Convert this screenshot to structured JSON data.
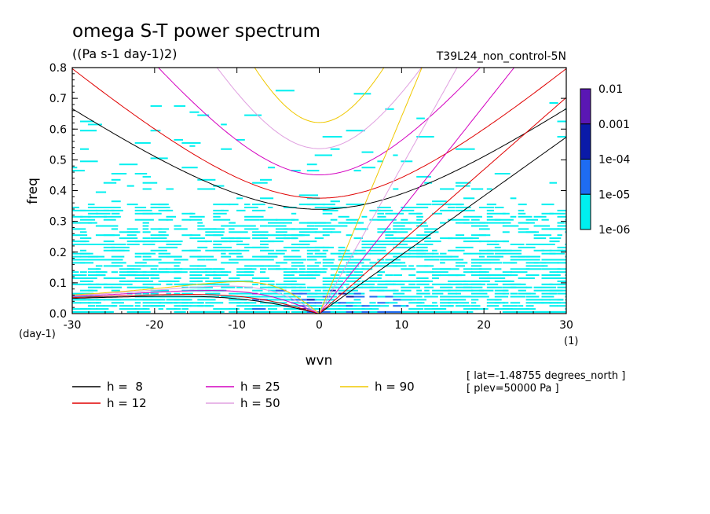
{
  "chart_data": {
    "type": "heatmap",
    "title": "omega S-T power spectrum",
    "subtitle": "((Pa s-1 day-1)2)",
    "run_label": "T39L24_non_control-5N",
    "xlabel": "wvn",
    "ylabel": "freq",
    "x_unit": "(1)",
    "y_unit": "(day-1)",
    "xlim": [
      -30,
      30
    ],
    "ylim": [
      0,
      0.8
    ],
    "x_ticks": [
      "-30",
      "-20",
      "-10",
      "0",
      "10",
      "20",
      "30"
    ],
    "y_ticks": [
      "0.0",
      "0.1",
      "0.2",
      "0.3",
      "0.4",
      "0.5",
      "0.6",
      "0.7",
      "0.8"
    ],
    "colorbar": {
      "levels": [
        "0.01",
        "0.001",
        "1e-04",
        "1e-05",
        "1e-06"
      ],
      "colors": [
        "#5a17b4",
        "#0a1aa8",
        "#1e6cf2",
        "#00f0f0"
      ]
    },
    "dispersion_curves": [
      {
        "label": "h =  8",
        "h": 8,
        "color": "#000000"
      },
      {
        "label": "h = 12",
        "h": 12,
        "color": "#e00000"
      },
      {
        "label": "h = 25",
        "h": 25,
        "color": "#d400c0"
      },
      {
        "label": "h = 50",
        "h": 50,
        "color": "#e0a0e0"
      },
      {
        "label": "h = 90",
        "h": 90,
        "color": "#f0c800"
      }
    ],
    "annotations": [
      "[ lat=-1.48755 degrees_north ]",
      "[ plev=50000 Pa ]"
    ]
  }
}
